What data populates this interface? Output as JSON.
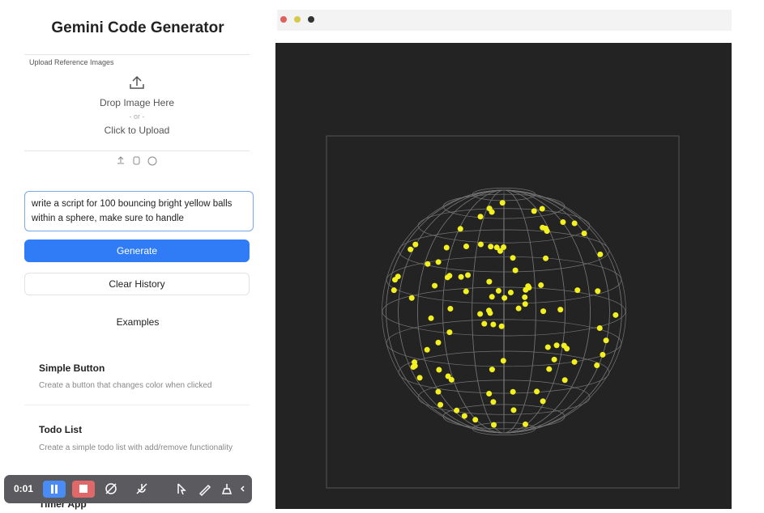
{
  "sidebar": {
    "title": "Gemini Code Generator",
    "upload": {
      "label": "Upload Reference Images",
      "drop": "Drop Image Here",
      "or": "- or -",
      "click": "Click to Upload"
    },
    "prompt": "write a script for 100 bouncing bright yellow balls within a sphere, make sure to handle",
    "generate": "Generate",
    "clear": "Clear History",
    "examples_heading": "Examples",
    "examples": [
      {
        "title": "Simple Button",
        "description": "Create a button that changes color when clicked"
      },
      {
        "title": "Todo List",
        "description": "Create a simple todo list with add/remove functionality"
      },
      {
        "title": "Timer App"
      }
    ]
  },
  "recorder": {
    "time": "0:01"
  }
}
